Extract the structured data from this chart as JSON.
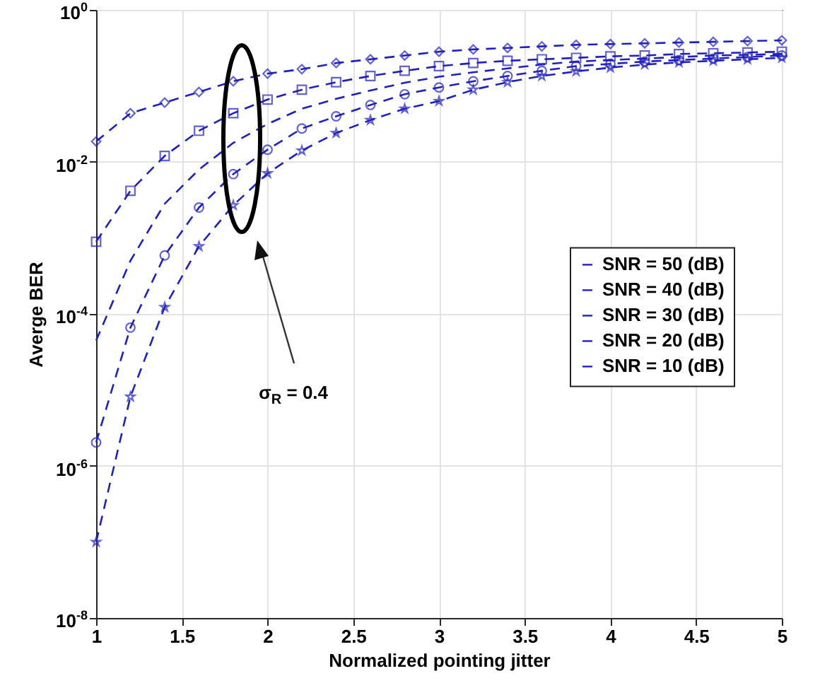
{
  "chart_data": {
    "type": "line",
    "xlabel": "Normalized pointing jitter",
    "ylabel": "Averge BER",
    "x": [
      1,
      1.2,
      1.4,
      1.6,
      1.8,
      2,
      2.2,
      2.4,
      2.6,
      2.8,
      3,
      3.2,
      3.4,
      3.6,
      3.8,
      4,
      4.2,
      4.4,
      4.6,
      4.8,
      5
    ],
    "series": [
      {
        "name": "SNR = 50 (dB)",
        "color": "#2020c0",
        "marker": "star",
        "values": [
          1e-07,
          8.13e-06,
          0.000123,
          0.000776,
          0.00269,
          0.00708,
          0.0141,
          0.024,
          0.0355,
          0.0501,
          0.0631,
          0.0891,
          0.112,
          0.135,
          0.155,
          0.174,
          0.191,
          0.204,
          0.214,
          0.224,
          0.234
        ]
      },
      {
        "name": "SNR = 40 (dB)",
        "color": "#2020c0",
        "marker": "circle",
        "values": [
          2.04e-06,
          6.61e-05,
          0.000589,
          0.00251,
          0.00692,
          0.0145,
          0.0275,
          0.0398,
          0.0562,
          0.0776,
          0.0955,
          0.115,
          0.135,
          0.158,
          0.182,
          0.195,
          0.209,
          0.219,
          0.229,
          0.24,
          0.251
        ]
      },
      {
        "name": "SNR = 30 (dB)",
        "color": "#2020c0",
        "marker": "none",
        "values": [
          4.47e-05,
          0.000501,
          0.00282,
          0.00794,
          0.0178,
          0.0316,
          0.0501,
          0.0676,
          0.0871,
          0.11,
          0.132,
          0.151,
          0.17,
          0.191,
          0.209,
          0.219,
          0.229,
          0.24,
          0.251,
          0.257,
          0.263
        ]
      },
      {
        "name": "SNR = 20 (dB)",
        "color": "#2020c0",
        "marker": "square",
        "values": [
          0.000891,
          0.00417,
          0.012,
          0.0257,
          0.0437,
          0.0661,
          0.0891,
          0.112,
          0.135,
          0.158,
          0.182,
          0.2,
          0.214,
          0.224,
          0.234,
          0.245,
          0.251,
          0.263,
          0.269,
          0.275,
          0.282
        ]
      },
      {
        "name": "SNR = 10 (dB)",
        "color": "#2020c0",
        "marker": "diamond",
        "values": [
          0.0186,
          0.0437,
          0.0603,
          0.0832,
          0.115,
          0.145,
          0.166,
          0.2,
          0.224,
          0.251,
          0.282,
          0.302,
          0.316,
          0.331,
          0.347,
          0.355,
          0.363,
          0.372,
          0.38,
          0.389,
          0.398
        ]
      }
    ],
    "xlim": [
      1,
      5
    ],
    "xticks": [
      1,
      1.5,
      2,
      2.5,
      3,
      3.5,
      4,
      4.5,
      5
    ],
    "ylim": [
      1e-08,
      1
    ],
    "log": true,
    "yticks": [
      {
        "value": 1e-08,
        "label": "10$^{-8}$"
      },
      {
        "value": 1e-06,
        "label": "10$^{-6}$"
      },
      {
        "value": 0.0001,
        "label": "10$^{-4}$"
      },
      {
        "value": 0.01,
        "label": "10$^{-2}$"
      },
      {
        "value": 1,
        "label": "10$^{0}$"
      }
    ],
    "grid": true,
    "legend": "right",
    "line_style": "dashed",
    "annotations": [
      "σ$_{R}$ = 0.4"
    ]
  }
}
